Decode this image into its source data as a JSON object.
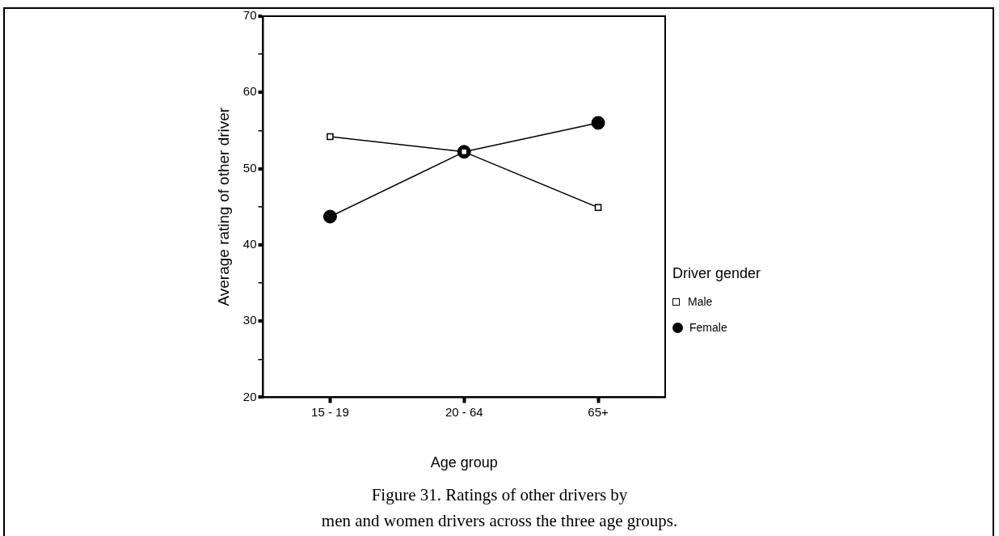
{
  "chart_data": {
    "type": "line",
    "xlabel": "Age group",
    "ylabel": "Average rating of other driver",
    "legend_title": "Driver gender",
    "categories": [
      "15 - 19",
      "20 - 64",
      "65+"
    ],
    "series": [
      {
        "name": "Male",
        "color": "#000000",
        "marker": "square",
        "values": [
          54.2,
          52.2,
          44.9
        ]
      },
      {
        "name": "Female",
        "color": "#000000",
        "marker": "circle",
        "values": [
          43.7,
          52.2,
          56.0
        ]
      }
    ],
    "ylim": [
      20,
      70
    ],
    "yticks": [
      20,
      {
        "value": 25,
        "label": null
      },
      30,
      {
        "value": 35,
        "label": null
      },
      40,
      {
        "value": 45,
        "label": null
      },
      50,
      {
        "value": 55,
        "label": null
      },
      60,
      {
        "value": 65,
        "label": null
      },
      70
    ],
    "grid": false,
    "legend": "right",
    "line_style": "solid",
    "annotations": [
      "Figure 31.  Ratings of other drivers by",
      "men and women drivers across the three age groups."
    ]
  }
}
